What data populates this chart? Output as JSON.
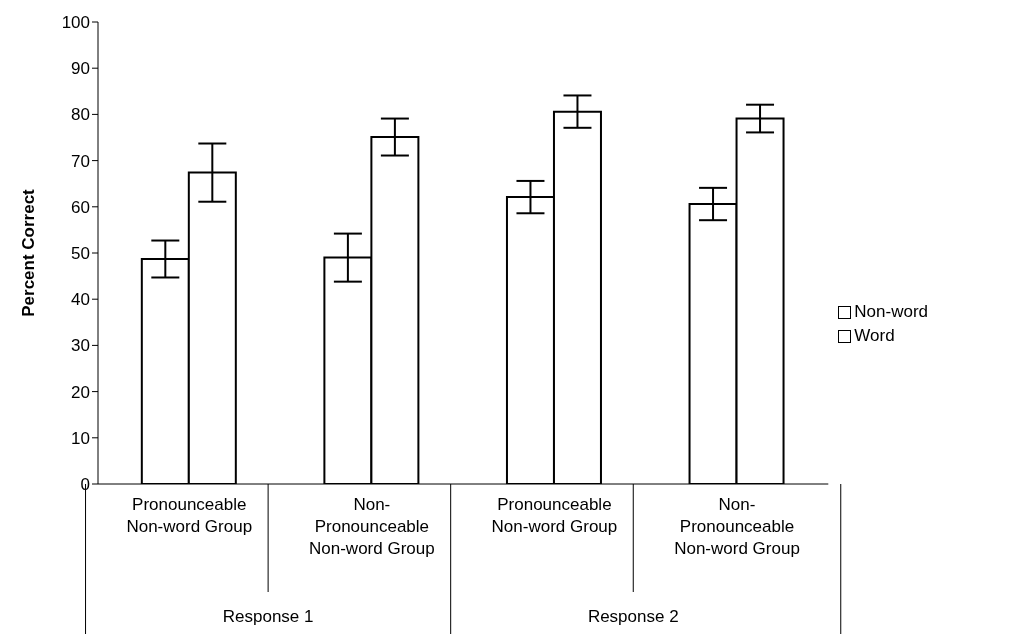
{
  "chart_data": {
    "type": "bar",
    "ylabel": "Percent Correct",
    "categories": [
      "Pronounceable Non-word Group",
      "Non-Pronounceable Non-word Group",
      "Pronounceable Non-word Group",
      "Non-Pronounceable Non-word Group"
    ],
    "series": [
      {
        "name": "Non-word",
        "color": "#ffffff",
        "values": [
          48.7,
          49,
          62.1,
          60.6
        ],
        "errors": [
          4,
          5.2,
          3.5,
          3.5
        ]
      },
      {
        "name": "Word",
        "color": "#ffffff",
        "values": [
          67.4,
          75.1,
          80.6,
          79.1
        ],
        "errors": [
          6.3,
          4,
          3.5,
          3
        ]
      }
    ],
    "annotations": [
      "Response 1",
      "Response 2"
    ],
    "ylim": [
      0,
      100
    ],
    "yticks": [
      0,
      10,
      20,
      30,
      40,
      50,
      60,
      70,
      80,
      90,
      100
    ],
    "grid": false,
    "legend": "right"
  }
}
